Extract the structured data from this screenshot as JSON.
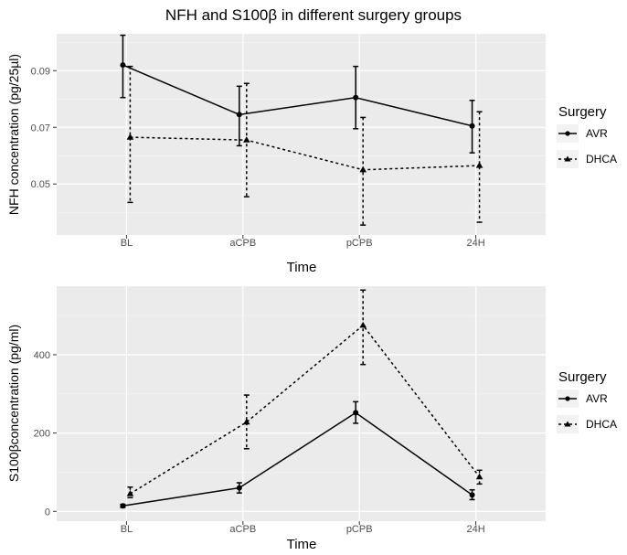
{
  "chart_data": [
    {
      "type": "line",
      "title": "NFH and S100β in different surgery groups",
      "xlabel": "Time",
      "ylabel": "NFH concentration (pg/25µl)",
      "categories": [
        "BL",
        "aCPB",
        "pCPB",
        "24H"
      ],
      "ylim": [
        0.032,
        0.103
      ],
      "yticks": [
        0.05,
        0.07,
        0.09
      ],
      "ytick_labels": [
        "0.05",
        "0.07",
        "0.09"
      ],
      "grid": true,
      "legend": {
        "title": "Surgery",
        "position": "right"
      },
      "series": [
        {
          "name": "AVR",
          "marker": "circle",
          "line": "solid",
          "values": [
            0.092,
            0.0745,
            0.0805,
            0.0705
          ],
          "err_low": [
            0.0805,
            0.0635,
            0.0695,
            0.061
          ],
          "err_high": [
            0.1025,
            0.0845,
            0.0915,
            0.0795
          ]
        },
        {
          "name": "DHCA",
          "marker": "triangle",
          "line": "dashed",
          "values": [
            0.0665,
            0.0655,
            0.055,
            0.0565
          ],
          "err_low": [
            0.0435,
            0.0455,
            0.0355,
            0.0365
          ],
          "err_high": [
            0.0915,
            0.0855,
            0.0735,
            0.0755
          ]
        }
      ]
    },
    {
      "type": "line",
      "xlabel": "Time",
      "ylabel": "S100βconcentration (pg/ml)",
      "categories": [
        "BL",
        "aCPB",
        "pCPB",
        "24H"
      ],
      "ylim": [
        -25,
        575
      ],
      "yticks": [
        0,
        200,
        400
      ],
      "ytick_labels": [
        "0",
        "200",
        "400"
      ],
      "grid": true,
      "legend": {
        "title": "Surgery",
        "position": "right"
      },
      "series": [
        {
          "name": "AVR",
          "marker": "circle",
          "line": "solid",
          "values": [
            14,
            60,
            252,
            42
          ],
          "err_low": [
            10,
            47,
            225,
            30
          ],
          "err_high": [
            18,
            73,
            280,
            55
          ]
        },
        {
          "name": "DHCA",
          "marker": "triangle",
          "line": "dashed",
          "values": [
            45,
            228,
            475,
            88
          ],
          "err_low": [
            35,
            160,
            375,
            70
          ],
          "err_high": [
            62,
            297,
            565,
            105
          ]
        }
      ]
    }
  ]
}
